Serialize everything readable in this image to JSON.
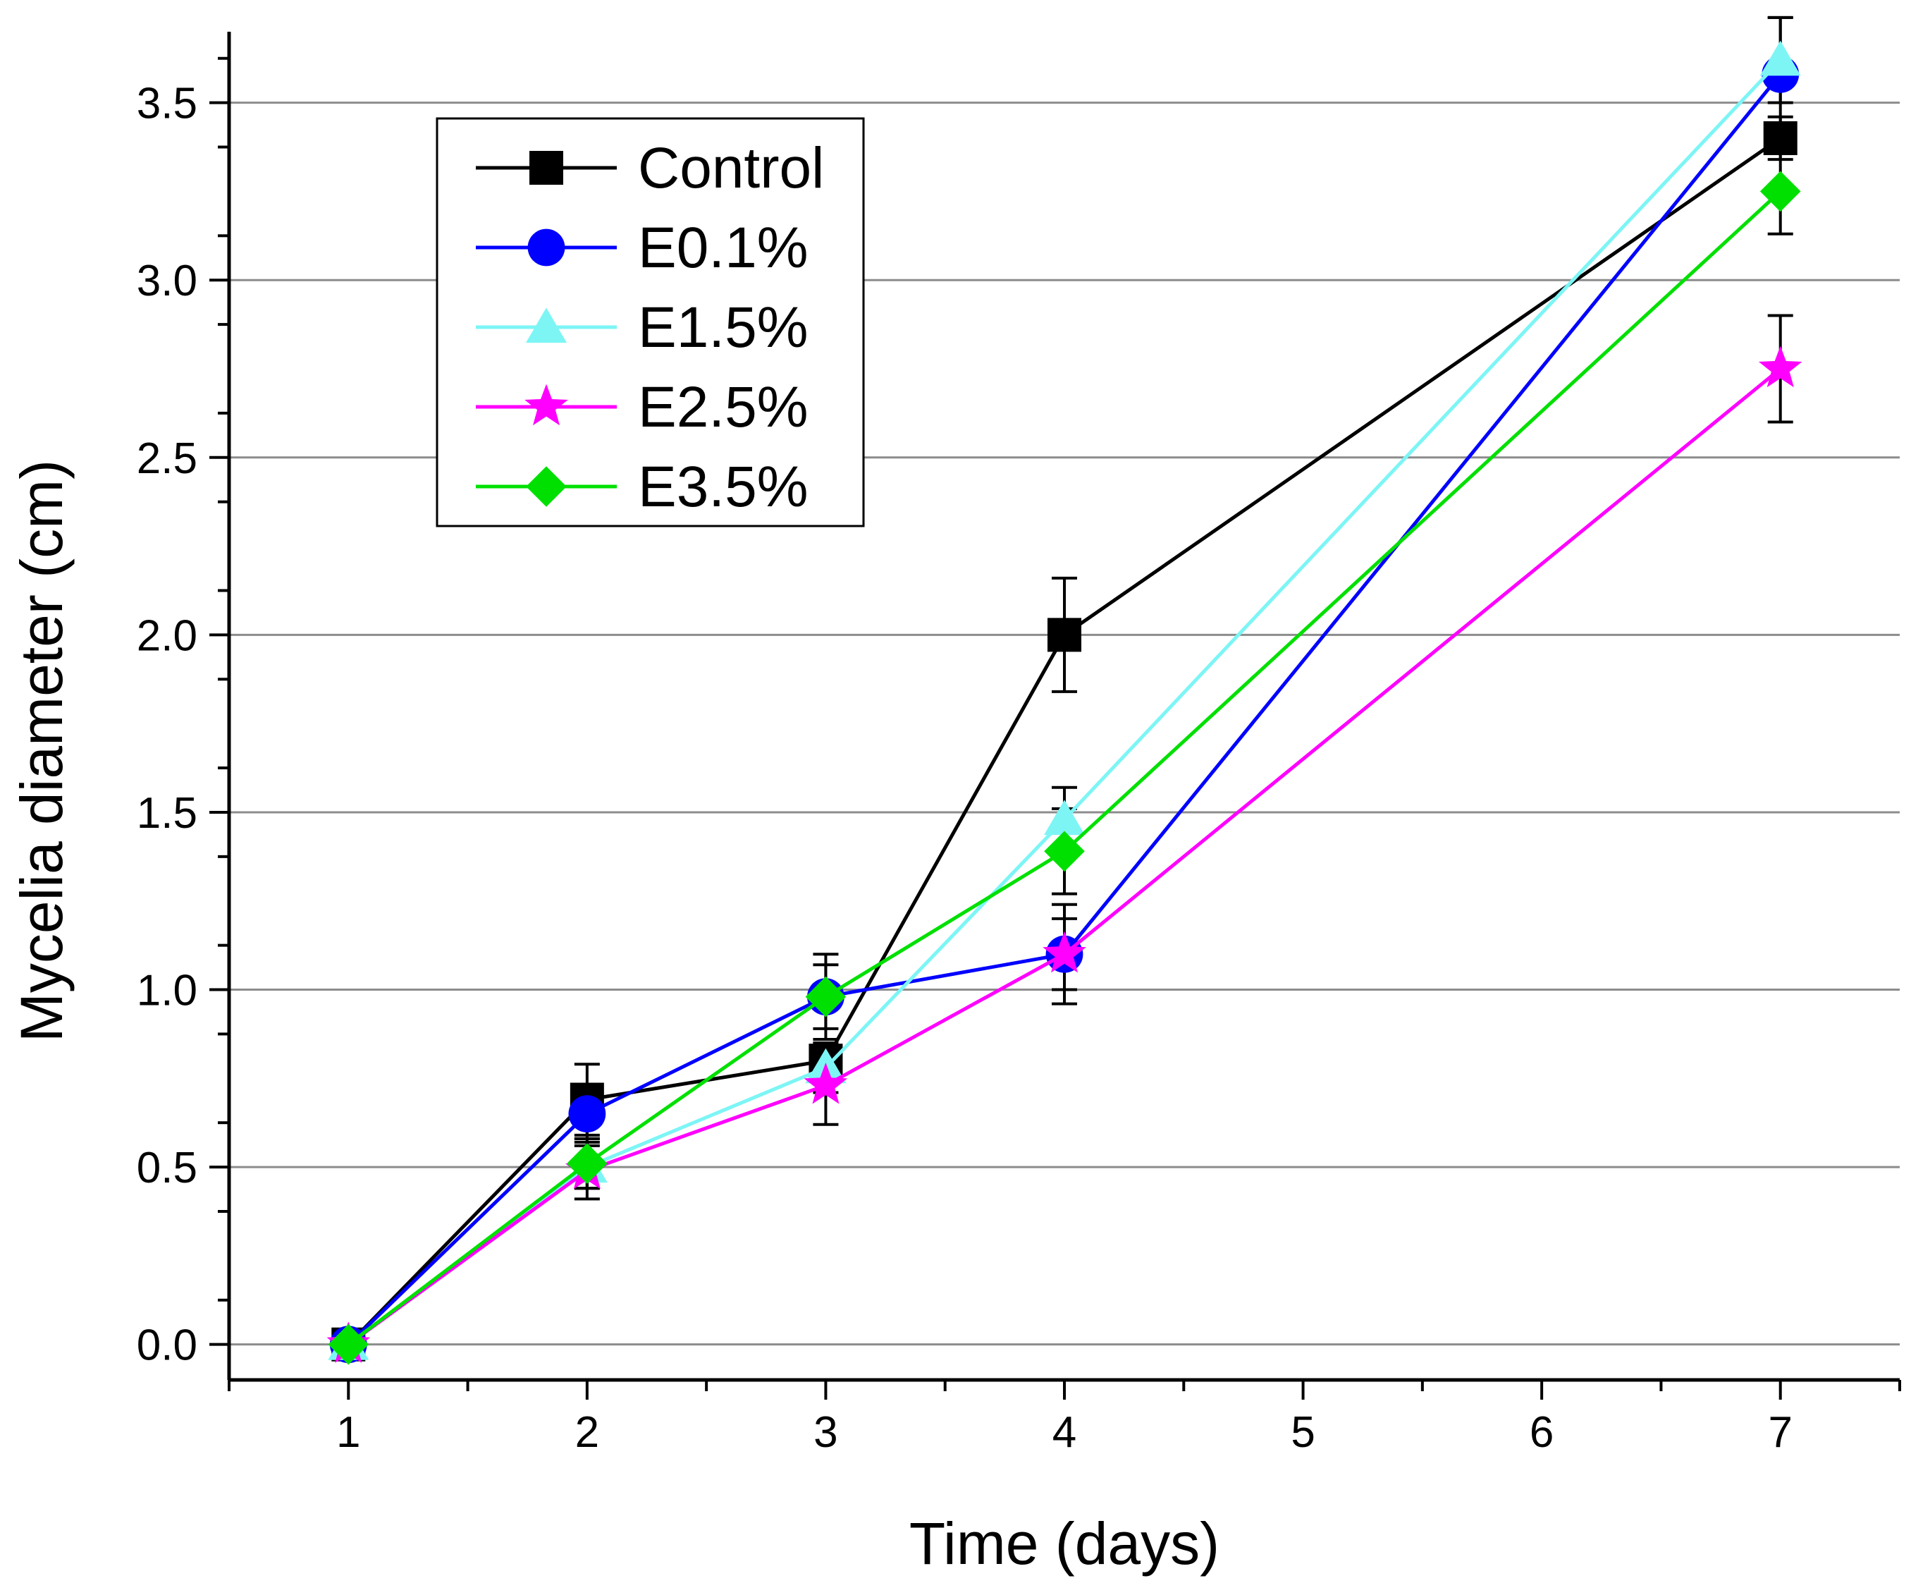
{
  "chart_data": {
    "type": "line",
    "title": "",
    "xlabel": "Time (days)",
    "ylabel": "Mycelia diameter (cm)",
    "x": [
      1,
      2,
      3,
      4,
      7
    ],
    "xlim": [
      0.5,
      7.5
    ],
    "ylim": [
      -0.1,
      3.7
    ],
    "xticks": [
      1,
      2,
      3,
      4,
      5,
      6,
      7
    ],
    "xtick_labels": [
      "1",
      "2",
      "3",
      "4",
      "5",
      "6",
      "7"
    ],
    "yticks": [
      0,
      0.5,
      1,
      1.5,
      2,
      2.5,
      3,
      3.5
    ],
    "ytick_labels": [
      "0.0",
      "0.5",
      "1.0",
      "1.5",
      "2.0",
      "2.5",
      "3.0",
      "3.5"
    ],
    "grid": "horizontal",
    "legend_position": "top-left",
    "series": [
      {
        "name": "Control",
        "color": "#000000",
        "marker": "square",
        "values": [
          0,
          0.69,
          0.8,
          2.0,
          3.4
        ],
        "errors": [
          0,
          0.1,
          0.05,
          0.16,
          0.06
        ]
      },
      {
        "name": "E0.1%",
        "color": "#0000ff",
        "marker": "circle",
        "values": [
          0,
          0.65,
          0.98,
          1.1,
          3.58
        ],
        "errors": [
          0,
          0.07,
          0.09,
          0.1,
          0.16
        ]
      },
      {
        "name": "E1.5%",
        "color": "#7df5f5",
        "marker": "triangle",
        "values": [
          0,
          0.5,
          0.78,
          1.48,
          3.62
        ],
        "errors": [
          0,
          0.06,
          0.07,
          0.09,
          0.12
        ]
      },
      {
        "name": "E2.5%",
        "color": "#ff00ff",
        "marker": "star",
        "values": [
          0,
          0.49,
          0.73,
          1.1,
          2.75
        ],
        "errors": [
          0,
          0.08,
          0.11,
          0.14,
          0.15
        ]
      },
      {
        "name": "E3.5%",
        "color": "#00e000",
        "marker": "diamond",
        "values": [
          0,
          0.51,
          0.98,
          1.39,
          3.25
        ],
        "errors": [
          0,
          0.07,
          0.12,
          0.12,
          0.12
        ]
      }
    ]
  }
}
